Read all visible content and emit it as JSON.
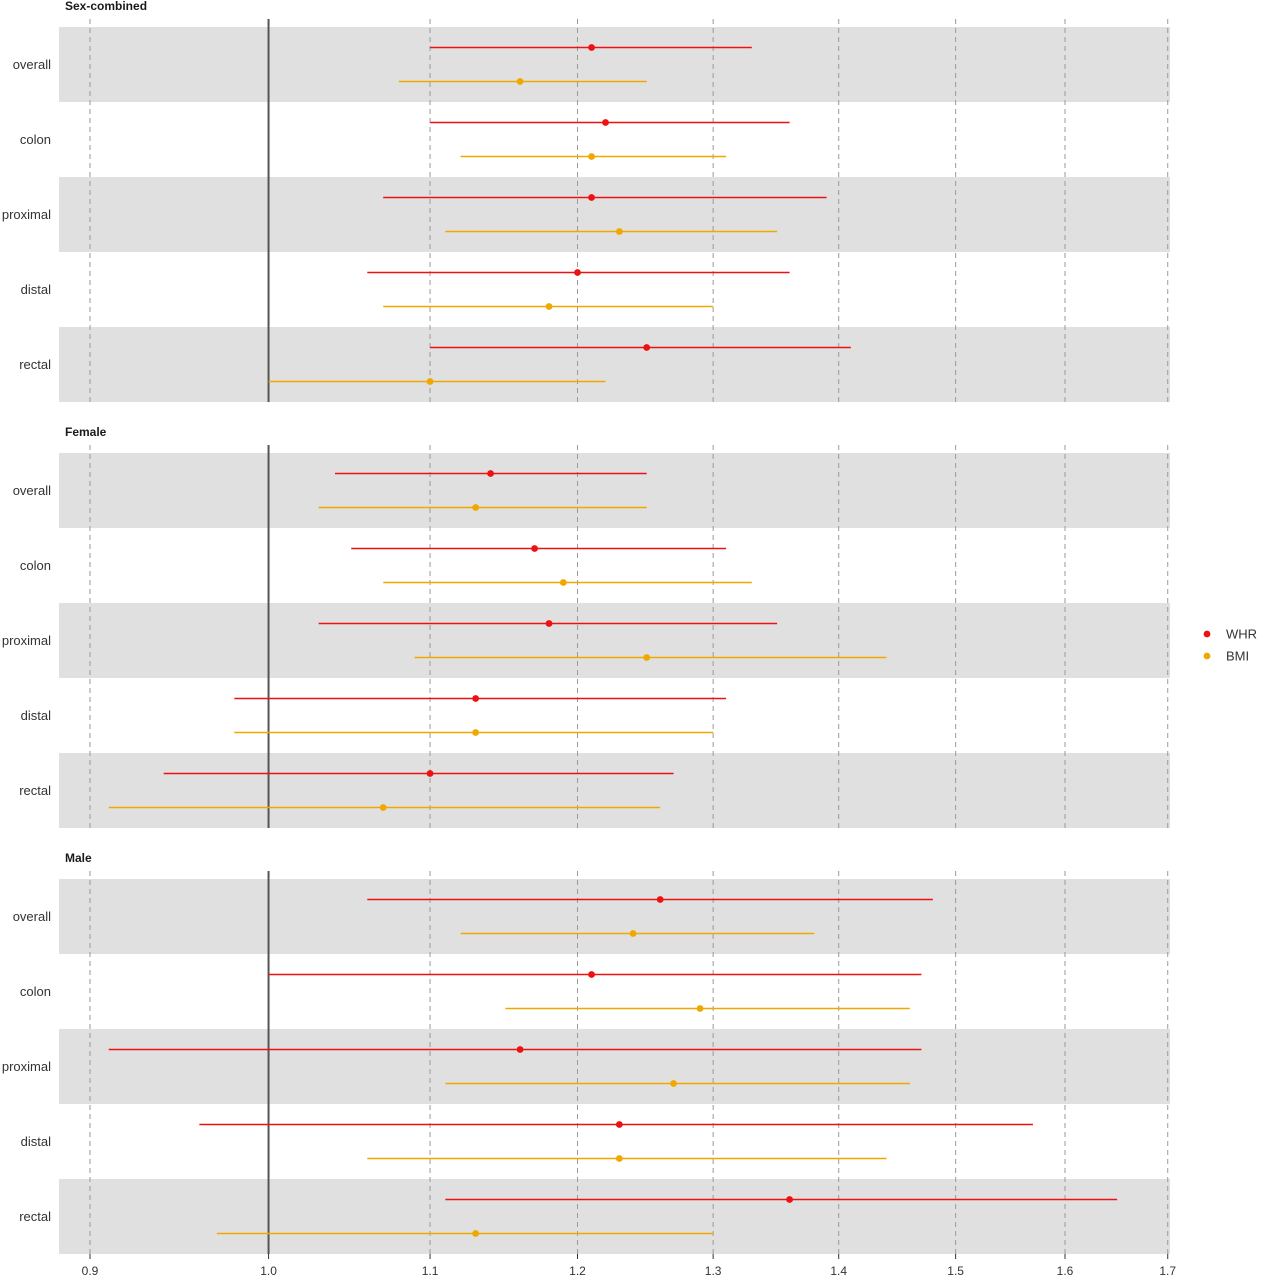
{
  "chart_data": {
    "type": "forest",
    "x_scale": "log",
    "xlim": [
      0.9,
      1.7
    ],
    "x_ticks": [
      0.9,
      1.0,
      1.1,
      1.2,
      1.3,
      1.4,
      1.5,
      1.6,
      1.7
    ],
    "x_tick_labels": [
      "0.9",
      "1.0",
      "1.1",
      "1.2",
      "1.3",
      "1.4",
      "1.5",
      "1.6",
      "1.7"
    ],
    "reference_line": 1.0,
    "grid": "vertical dashed",
    "legend_position": "right",
    "series": [
      {
        "name": "WHR",
        "color": "#ee1111"
      },
      {
        "name": "BMI",
        "color": "#f0a800"
      }
    ],
    "rows": [
      "overall",
      "colon",
      "proximal",
      "distal",
      "rectal"
    ],
    "panels": [
      {
        "title": "Sex-combined",
        "rows": [
          {
            "label": "overall",
            "WHR": {
              "est": 1.21,
              "lo": 1.1,
              "hi": 1.33
            },
            "BMI": {
              "est": 1.16,
              "lo": 1.08,
              "hi": 1.25
            }
          },
          {
            "label": "colon",
            "WHR": {
              "est": 1.22,
              "lo": 1.1,
              "hi": 1.36
            },
            "BMI": {
              "est": 1.21,
              "lo": 1.12,
              "hi": 1.31
            }
          },
          {
            "label": "proximal",
            "WHR": {
              "est": 1.21,
              "lo": 1.07,
              "hi": 1.39
            },
            "BMI": {
              "est": 1.23,
              "lo": 1.11,
              "hi": 1.35
            }
          },
          {
            "label": "distal",
            "WHR": {
              "est": 1.2,
              "lo": 1.06,
              "hi": 1.36
            },
            "BMI": {
              "est": 1.18,
              "lo": 1.07,
              "hi": 1.3
            }
          },
          {
            "label": "rectal",
            "WHR": {
              "est": 1.25,
              "lo": 1.1,
              "hi": 1.41
            },
            "BMI": {
              "est": 1.1,
              "lo": 1.0,
              "hi": 1.22
            }
          }
        ]
      },
      {
        "title": "Female",
        "rows": [
          {
            "label": "overall",
            "WHR": {
              "est": 1.14,
              "lo": 1.04,
              "hi": 1.25
            },
            "BMI": {
              "est": 1.13,
              "lo": 1.03,
              "hi": 1.25
            }
          },
          {
            "label": "colon",
            "WHR": {
              "est": 1.17,
              "lo": 1.05,
              "hi": 1.31
            },
            "BMI": {
              "est": 1.19,
              "lo": 1.07,
              "hi": 1.33
            }
          },
          {
            "label": "proximal",
            "WHR": {
              "est": 1.18,
              "lo": 1.03,
              "hi": 1.35
            },
            "BMI": {
              "est": 1.25,
              "lo": 1.09,
              "hi": 1.44
            }
          },
          {
            "label": "distal",
            "WHR": {
              "est": 1.13,
              "lo": 0.98,
              "hi": 1.31
            },
            "BMI": {
              "est": 1.13,
              "lo": 0.98,
              "hi": 1.3
            }
          },
          {
            "label": "rectal",
            "WHR": {
              "est": 1.1,
              "lo": 0.94,
              "hi": 1.27
            },
            "BMI": {
              "est": 1.07,
              "lo": 0.91,
              "hi": 1.26
            }
          }
        ]
      },
      {
        "title": "Male",
        "rows": [
          {
            "label": "overall",
            "WHR": {
              "est": 1.26,
              "lo": 1.06,
              "hi": 1.48
            },
            "BMI": {
              "est": 1.24,
              "lo": 1.12,
              "hi": 1.38
            }
          },
          {
            "label": "colon",
            "WHR": {
              "est": 1.21,
              "lo": 1.0,
              "hi": 1.47
            },
            "BMI": {
              "est": 1.29,
              "lo": 1.15,
              "hi": 1.46
            }
          },
          {
            "label": "proximal",
            "WHR": {
              "est": 1.16,
              "lo": 0.91,
              "hi": 1.47
            },
            "BMI": {
              "est": 1.27,
              "lo": 1.11,
              "hi": 1.46
            }
          },
          {
            "label": "distal",
            "WHR": {
              "est": 1.23,
              "lo": 0.96,
              "hi": 1.57
            },
            "BMI": {
              "est": 1.23,
              "lo": 1.06,
              "hi": 1.44
            }
          },
          {
            "label": "rectal",
            "WHR": {
              "est": 1.36,
              "lo": 1.11,
              "hi": 1.65
            },
            "BMI": {
              "est": 1.13,
              "lo": 0.97,
              "hi": 1.3
            }
          }
        ]
      }
    ]
  }
}
